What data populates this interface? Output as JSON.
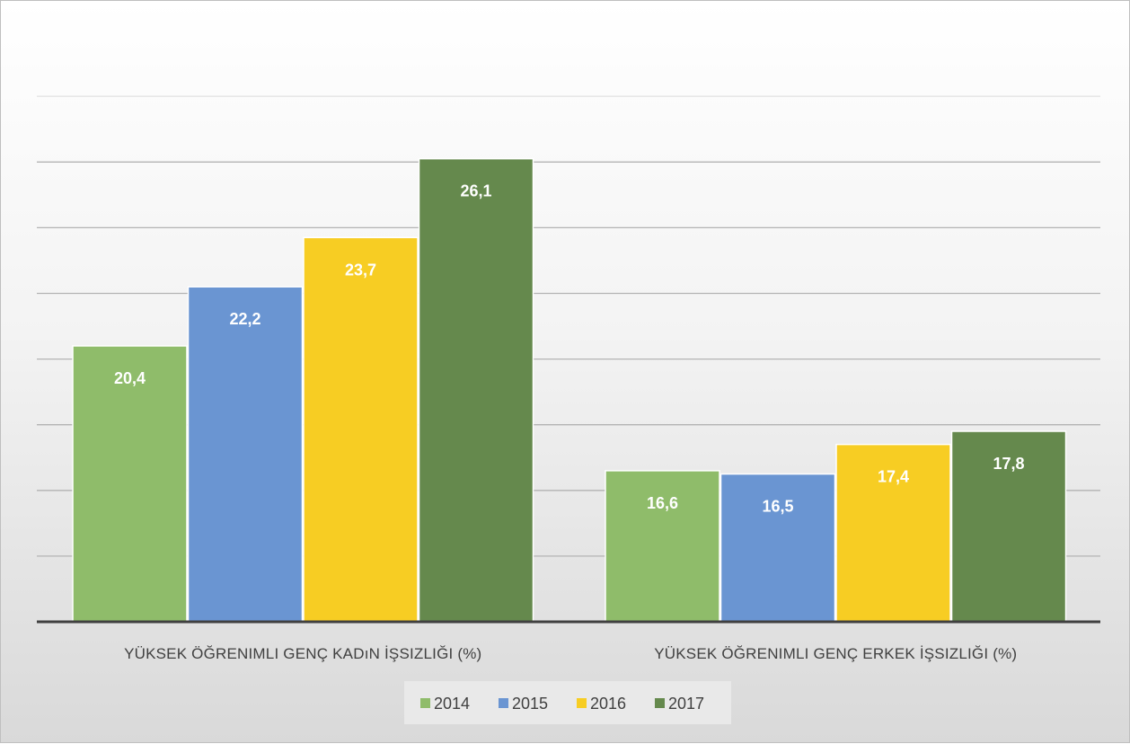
{
  "chart_data": {
    "type": "bar",
    "categories": [
      "YÜKSEK ÖĞRENIMLI GENÇ KADıN İŞSIZLIĞI (%)",
      "YÜKSEK ÖĞRENIMLI GENÇ ERKEK İŞSIZLIĞI (%)"
    ],
    "series": [
      {
        "name": "2014",
        "values": [
          20.4,
          16.6
        ],
        "labels": [
          "20,4",
          "16,6"
        ],
        "color": "#8fbc6a"
      },
      {
        "name": "2015",
        "values": [
          22.2,
          16.5
        ],
        "labels": [
          "22,2",
          "16,5"
        ],
        "color": "#6a95d2"
      },
      {
        "name": "2016",
        "values": [
          23.7,
          17.4
        ],
        "labels": [
          "23,7",
          "17,4"
        ],
        "color": "#f7cd23"
      },
      {
        "name": "2017",
        "values": [
          26.1,
          17.8
        ],
        "labels": [
          "26,1",
          "17,8"
        ],
        "color": "#65894d"
      }
    ],
    "title": "",
    "xlabel": "",
    "ylabel": "",
    "ylim": [
      12,
      28
    ],
    "y_axis_labels_shown": false,
    "grid": true,
    "legend": "bottom"
  }
}
